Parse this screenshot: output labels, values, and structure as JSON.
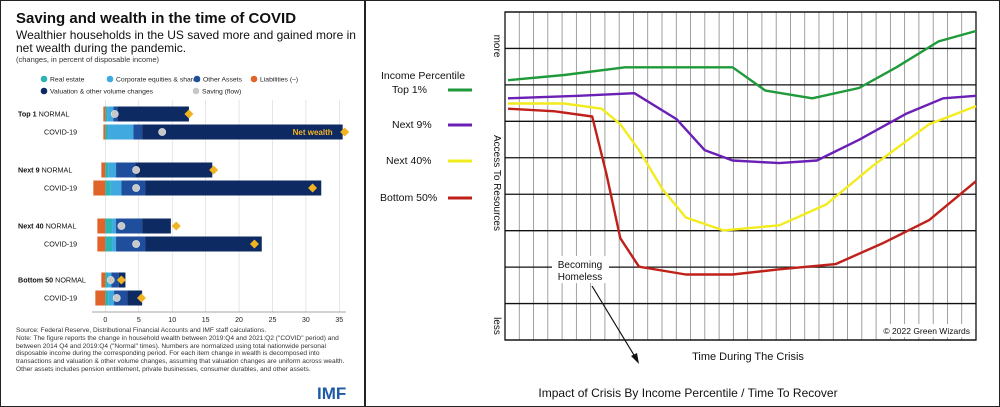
{
  "left_chart": {
    "title": "Saving and wealth in the time of COVID",
    "subtitle": "Wealthier households in the US saved more and gained more in net wealth during the pandemic.",
    "note": "(changes, in percent of disposable income)",
    "source": "Source: Federal Reserve, Distributional Financial Accounts and IMF staff calculations.",
    "source_note": "Note: The figure reports the change in household wealth between 2019:Q4 and 2021:Q2 (\"COVID\" period) and between 2014 Q4 and 2019:Q4 (\"Normal\" times). Numbers are normalized using total nationwide personal disposable income during the corresponding period. For each item change in wealth is decomposed into transactions and valuation & other volume changes, assuming that valuation changes are uniform across wealth. Other assets includes pension entitlement, private businesses, consumer durables, and other assets.",
    "logo": "IMF",
    "net_wealth_annotation": "Net wealth"
  },
  "chart_data": [
    {
      "type": "bar",
      "orientation": "horizontal",
      "stacked": true,
      "legend": [
        {
          "name": "Real estate",
          "color": "#2bb3b5",
          "marker": "circle"
        },
        {
          "name": "Corporate equities & shares",
          "color": "#3fa9e0",
          "marker": "circle"
        },
        {
          "name": "Other Assets",
          "color": "#1f4e9c",
          "marker": "circle"
        },
        {
          "name": "Liabilities (–)",
          "color": "#e0642a",
          "marker": "circle"
        },
        {
          "name": "Valuation & other volume changes",
          "color": "#0d2a63",
          "marker": "circle"
        },
        {
          "name": "Saving (flow)",
          "color": "#c8c8c8",
          "marker": "circle"
        }
      ],
      "groups": [
        {
          "label": "Top 1",
          "rows": [
            {
              "label": "NORMAL",
              "segments": [
                {
                  "series": "Liabilities (–)",
                  "from": -0.3,
                  "to": 0
                },
                {
                  "series": "Real estate",
                  "from": 0,
                  "to": 0.3
                },
                {
                  "series": "Corporate equities & shares",
                  "from": 0.3,
                  "to": 1.2
                },
                {
                  "series": "Other Assets",
                  "from": 1.2,
                  "to": 1.8
                },
                {
                  "series": "Valuation & other volume changes",
                  "from": 1.8,
                  "to": 12.5
                }
              ],
              "saving": 1.4,
              "net_wealth": 12.5
            },
            {
              "label": "COVID-19",
              "segments": [
                {
                  "series": "Liabilities (–)",
                  "from": -0.3,
                  "to": 0
                },
                {
                  "series": "Real estate",
                  "from": 0,
                  "to": 0.4
                },
                {
                  "series": "Corporate equities & shares",
                  "from": 0.4,
                  "to": 4.2
                },
                {
                  "series": "Other Assets",
                  "from": 4.2,
                  "to": 5.5
                },
                {
                  "series": "Valuation & other volume changes",
                  "from": 5.5,
                  "to": 35.5
                }
              ],
              "saving": 8.5,
              "net_wealth": 35.8
            }
          ]
        },
        {
          "label": "Next 9",
          "rows": [
            {
              "label": "NORMAL",
              "segments": [
                {
                  "series": "Liabilities (–)",
                  "from": -0.6,
                  "to": 0
                },
                {
                  "series": "Real estate",
                  "from": 0,
                  "to": 0.5
                },
                {
                  "series": "Corporate equities & shares",
                  "from": 0.5,
                  "to": 1.6
                },
                {
                  "series": "Other Assets",
                  "from": 1.6,
                  "to": 4.5
                },
                {
                  "series": "Valuation & other volume changes",
                  "from": 4.5,
                  "to": 16.0
                }
              ],
              "saving": 4.6,
              "net_wealth": 16.2
            },
            {
              "label": "COVID-19",
              "segments": [
                {
                  "series": "Liabilities (–)",
                  "from": -1.8,
                  "to": 0
                },
                {
                  "series": "Real estate",
                  "from": 0,
                  "to": 0.8
                },
                {
                  "series": "Corporate equities & shares",
                  "from": 0.8,
                  "to": 2.4
                },
                {
                  "series": "Other Assets",
                  "from": 2.4,
                  "to": 6.0
                },
                {
                  "series": "Valuation & other volume changes",
                  "from": 6.0,
                  "to": 32.3
                }
              ],
              "saving": 4.6,
              "net_wealth": 31.0
            }
          ]
        },
        {
          "label": "Next 40",
          "rows": [
            {
              "label": "NORMAL",
              "segments": [
                {
                  "series": "Liabilities (–)",
                  "from": -1.2,
                  "to": 0
                },
                {
                  "series": "Real estate",
                  "from": 0,
                  "to": 1.0
                },
                {
                  "series": "Corporate equities & shares",
                  "from": 1.0,
                  "to": 1.6
                },
                {
                  "series": "Other Assets",
                  "from": 1.6,
                  "to": 5.5
                },
                {
                  "series": "Valuation & other volume changes",
                  "from": 5.5,
                  "to": 9.8
                }
              ],
              "saving": 2.4,
              "net_wealth": 10.6
            },
            {
              "label": "COVID-19",
              "segments": [
                {
                  "series": "Liabilities (–)",
                  "from": -1.2,
                  "to": 0
                },
                {
                  "series": "Real estate",
                  "from": 0,
                  "to": 1.0
                },
                {
                  "series": "Corporate equities & shares",
                  "from": 1.0,
                  "to": 1.6
                },
                {
                  "series": "Other Assets",
                  "from": 1.6,
                  "to": 6.0
                },
                {
                  "series": "Valuation & other volume changes",
                  "from": 6.0,
                  "to": 23.4
                }
              ],
              "saving": 4.6,
              "net_wealth": 22.3
            }
          ]
        },
        {
          "label": "Bottom 50",
          "rows": [
            {
              "label": "NORMAL",
              "segments": [
                {
                  "series": "Liabilities (–)",
                  "from": -0.6,
                  "to": 0
                },
                {
                  "series": "Real estate",
                  "from": 0,
                  "to": 0.4
                },
                {
                  "series": "Corporate equities & shares",
                  "from": 0.4,
                  "to": 0.9
                },
                {
                  "series": "Other Assets",
                  "from": 0.9,
                  "to": 2.0
                },
                {
                  "series": "Valuation & other volume changes",
                  "from": 2.0,
                  "to": 3.0
                }
              ],
              "saving": 0.8,
              "net_wealth": 2.4
            },
            {
              "label": "COVID-19",
              "segments": [
                {
                  "series": "Liabilities (–)",
                  "from": -1.5,
                  "to": 0
                },
                {
                  "series": "Real estate",
                  "from": 0,
                  "to": 0.5
                },
                {
                  "series": "Corporate equities & shares",
                  "from": 0.5,
                  "to": 1.3
                },
                {
                  "series": "Other Assets",
                  "from": 1.3,
                  "to": 3.3
                },
                {
                  "series": "Valuation & other volume changes",
                  "from": 3.3,
                  "to": 5.5
                }
              ],
              "saving": 1.7,
              "net_wealth": 5.4
            }
          ]
        }
      ],
      "xlim": [
        -2,
        36
      ],
      "xticks": [
        0,
        5,
        10,
        15,
        20,
        25,
        30,
        35
      ],
      "grid": true
    },
    {
      "type": "line",
      "title": "Impact of Crisis By Income Percentile / Time To Recover",
      "xlabel": "Time During The Crisis",
      "ylabel": "Access To Resources",
      "y_top_label": "more",
      "y_bottom_label": "less",
      "legend_title": "Income Percentile",
      "credit": "© 2022 Green Wizards",
      "annotation": "Becoming Homeless",
      "xlim": [
        0,
        100
      ],
      "ylim": [
        0,
        100
      ],
      "grid": true,
      "series": [
        {
          "name": "Top 1%",
          "color": "#1f9a3a",
          "x": [
            0,
            12,
            25,
            40,
            48,
            55,
            65,
            75,
            83,
            92,
            100
          ],
          "y": [
            81,
            83,
            86,
            86,
            86,
            77,
            74,
            78,
            86,
            96,
            100
          ]
        },
        {
          "name": "Next 9%",
          "color": "#6a1fb5",
          "x": [
            0,
            15,
            27,
            36,
            42,
            48,
            58,
            66,
            75,
            85,
            93,
            100
          ],
          "y": [
            74,
            75,
            76,
            66,
            54,
            50,
            49,
            50,
            58,
            68,
            74,
            75
          ]
        },
        {
          "name": "Next 40%",
          "color": "#f2ec1e",
          "x": [
            0,
            12,
            20,
            24,
            28,
            33,
            38,
            46,
            58,
            68,
            78,
            90,
            100
          ],
          "y": [
            72,
            72,
            70,
            64,
            54,
            39,
            28,
            23,
            25,
            33,
            48,
            64,
            71
          ]
        },
        {
          "name": "Bottom 50%",
          "color": "#c0201a",
          "x": [
            0,
            10,
            18,
            21,
            24,
            28,
            38,
            48,
            58,
            70,
            80,
            90,
            100
          ],
          "y": [
            70,
            69,
            67,
            45,
            20,
            9,
            6,
            6,
            8,
            10,
            18,
            27,
            42
          ]
        }
      ]
    }
  ]
}
